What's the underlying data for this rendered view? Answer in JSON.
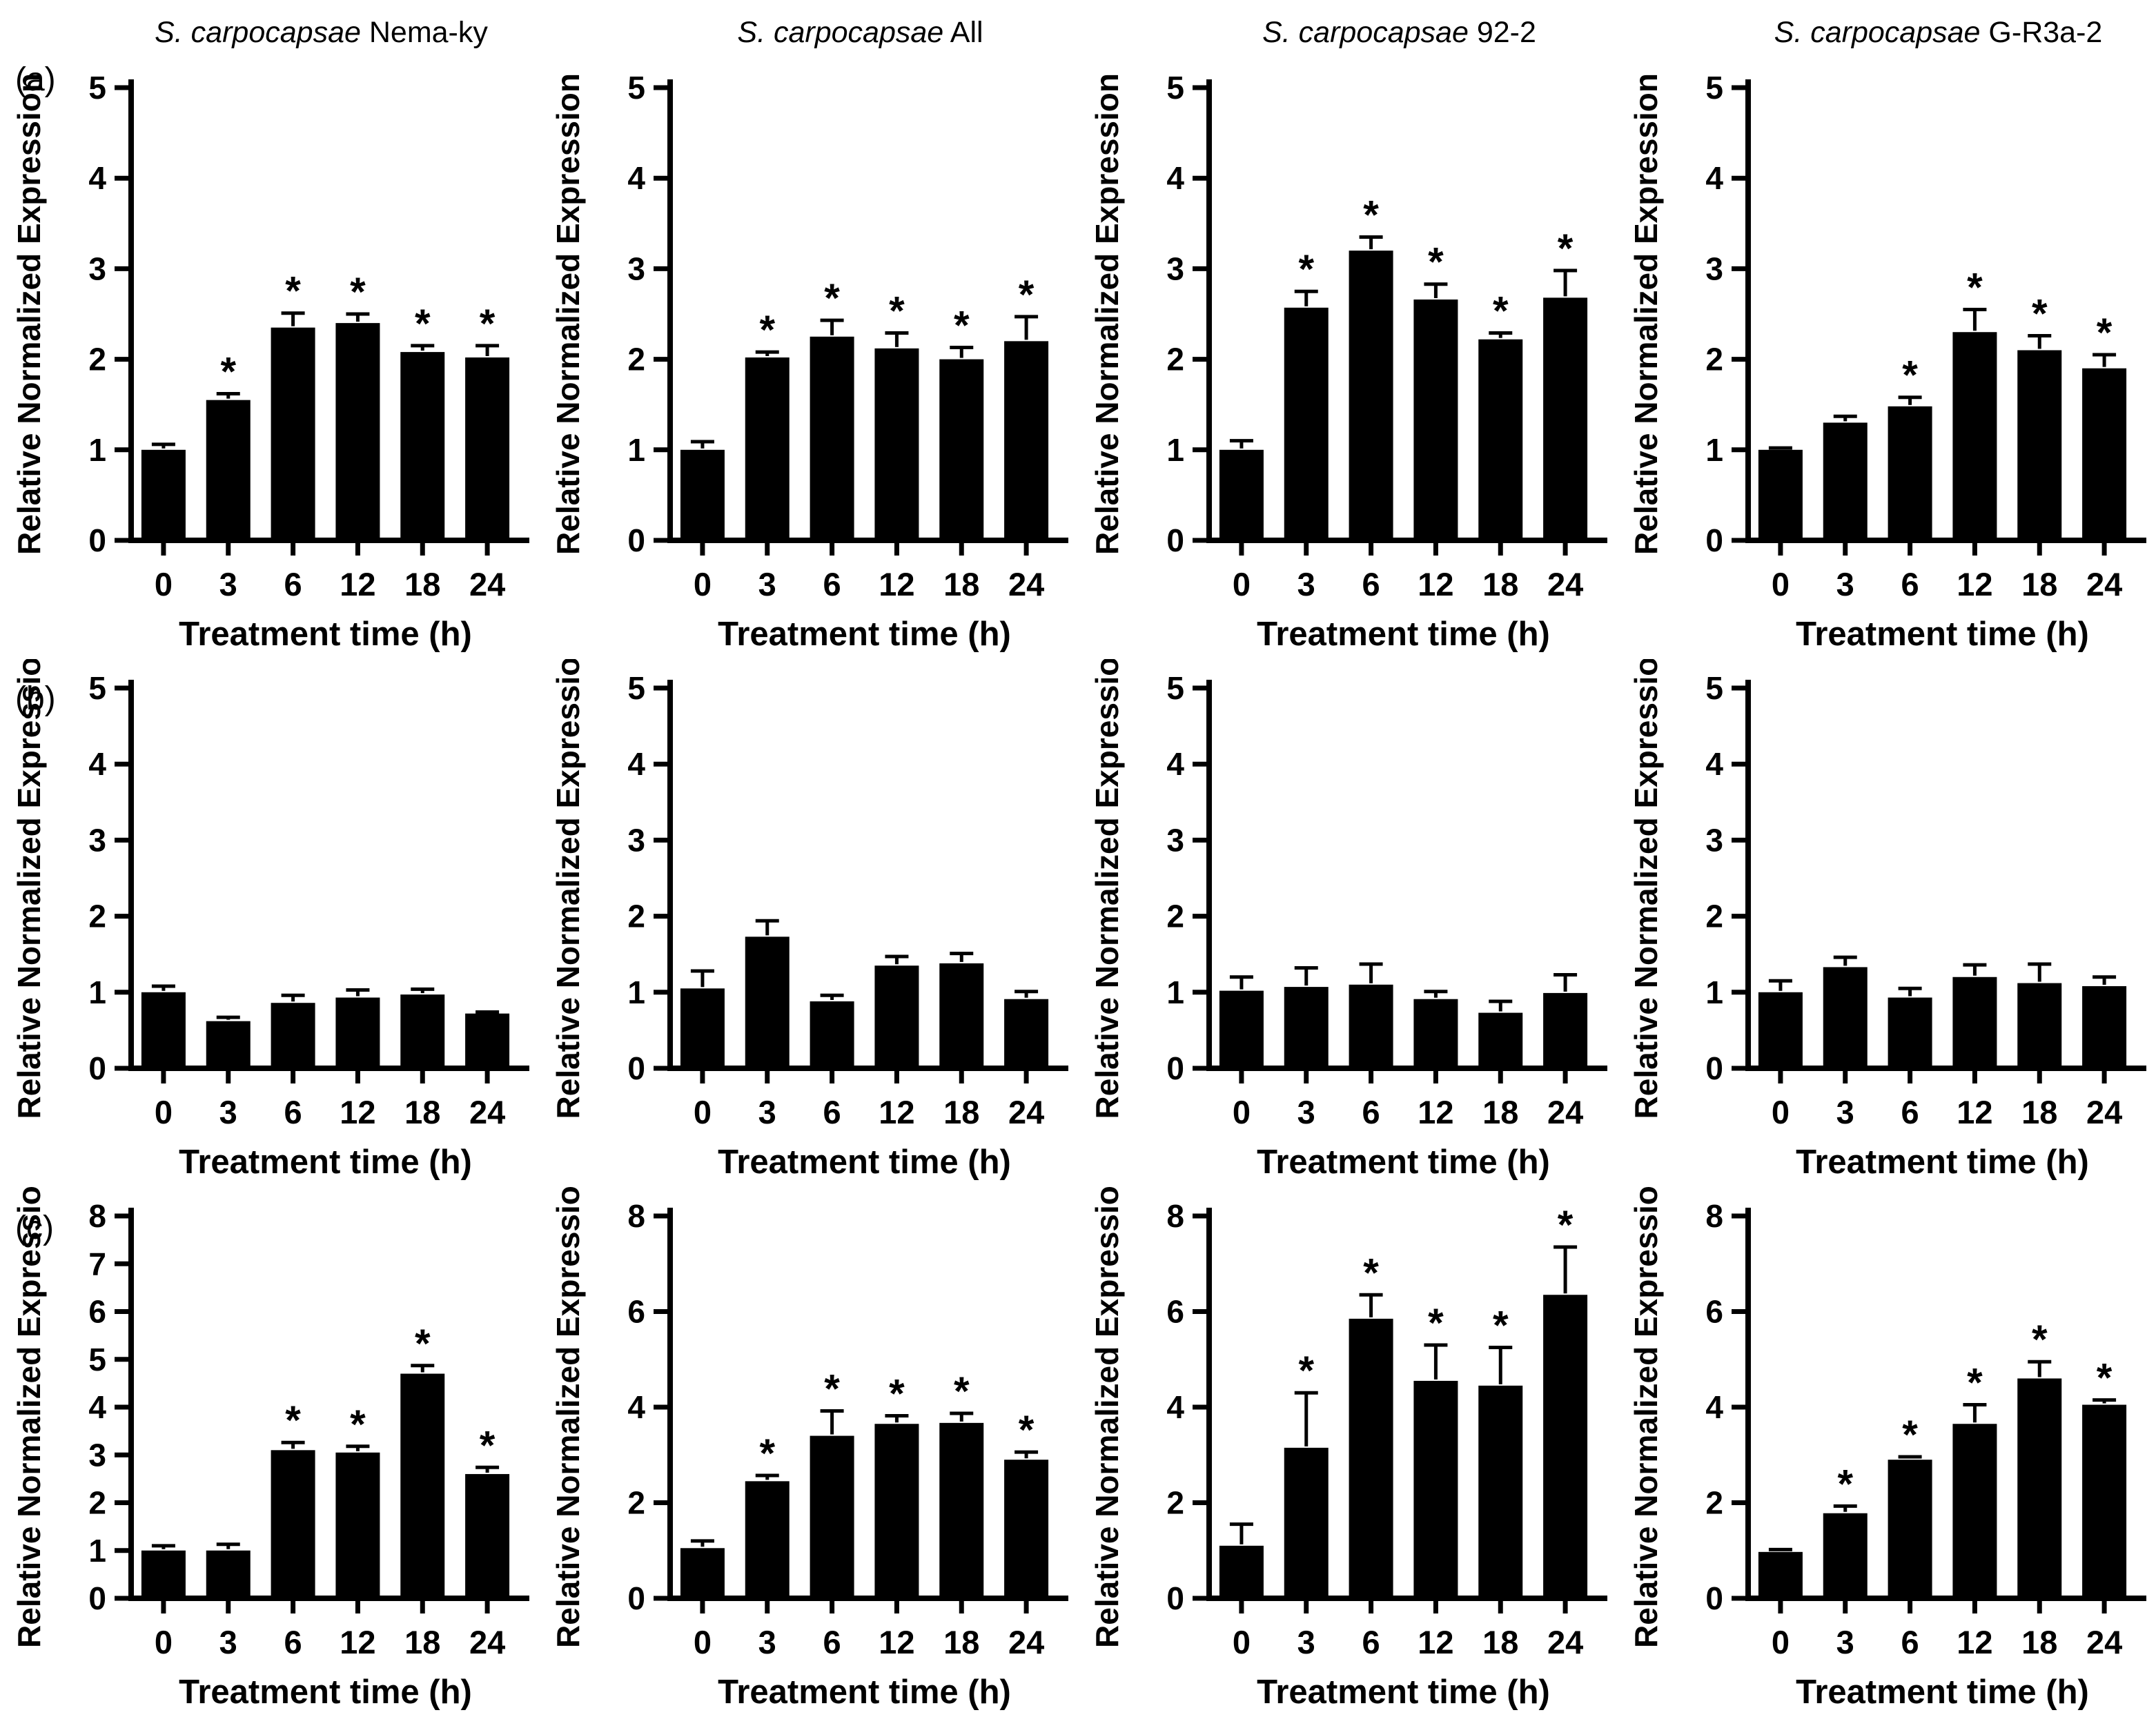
{
  "figure": {
    "row_labels": [
      "(a)",
      "(b)",
      "(c)"
    ],
    "columns": [
      {
        "species": "S. carpocapsae",
        "strain": "Nema-ky"
      },
      {
        "species": "S. carpocapsae",
        "strain": "All"
      },
      {
        "species": "S. carpocapsae",
        "strain": "92-2"
      },
      {
        "species": "S. carpocapsae",
        "strain": "G-R3a-2"
      }
    ],
    "ylabel": "Relative Normalized Expression",
    "xlabel": "Treatment time (h)",
    "significance_marker": "*",
    "bar_color": "#000000",
    "axis_color": "#000000"
  },
  "chart_data": [
    {
      "type": "bar",
      "panel": "a",
      "strain": "S. carpocapsae Nema-ky",
      "categories": [
        "0",
        "3",
        "6",
        "12",
        "18",
        "24"
      ],
      "values": [
        1.0,
        1.55,
        2.35,
        2.4,
        2.08,
        2.02
      ],
      "errors": [
        0.06,
        0.07,
        0.16,
        0.1,
        0.07,
        0.13
      ],
      "significant": [
        false,
        true,
        true,
        true,
        true,
        true
      ],
      "ylim": [
        0,
        5
      ],
      "yticks": [
        0,
        1,
        2,
        3,
        4,
        5
      ],
      "xlabel": "Treatment time (h)",
      "ylabel": "Relative Normalized Expression",
      "grid": false,
      "legend": false
    },
    {
      "type": "bar",
      "panel": "a",
      "strain": "S. carpocapsae All",
      "categories": [
        "0",
        "3",
        "6",
        "12",
        "18",
        "24"
      ],
      "values": [
        1.0,
        2.02,
        2.25,
        2.12,
        2.0,
        2.2
      ],
      "errors": [
        0.09,
        0.06,
        0.18,
        0.17,
        0.13,
        0.27
      ],
      "significant": [
        false,
        true,
        true,
        true,
        true,
        true
      ],
      "ylim": [
        0,
        5
      ],
      "yticks": [
        0,
        1,
        2,
        3,
        4,
        5
      ],
      "xlabel": "Treatment time (h)",
      "ylabel": "Relative Normalized Expression",
      "grid": false,
      "legend": false
    },
    {
      "type": "bar",
      "panel": "a",
      "strain": "S. carpocapsae 92-2",
      "categories": [
        "0",
        "3",
        "6",
        "12",
        "18",
        "24"
      ],
      "values": [
        1.0,
        2.57,
        3.2,
        2.66,
        2.22,
        2.68
      ],
      "errors": [
        0.1,
        0.18,
        0.15,
        0.17,
        0.07,
        0.3
      ],
      "significant": [
        false,
        true,
        true,
        true,
        true,
        true
      ],
      "ylim": [
        0,
        5
      ],
      "yticks": [
        0,
        1,
        2,
        3,
        4,
        5
      ],
      "xlabel": "Treatment time (h)",
      "ylabel": "Relative Normalized Expression",
      "grid": false,
      "legend": false
    },
    {
      "type": "bar",
      "panel": "a",
      "strain": "S. carpocapsae G-R3a-2",
      "categories": [
        "0",
        "3",
        "6",
        "12",
        "18",
        "24"
      ],
      "values": [
        1.0,
        1.3,
        1.48,
        2.3,
        2.1,
        1.9
      ],
      "errors": [
        0.02,
        0.07,
        0.1,
        0.25,
        0.16,
        0.15
      ],
      "significant": [
        false,
        false,
        true,
        true,
        true,
        true
      ],
      "ylim": [
        0,
        5
      ],
      "yticks": [
        0,
        1,
        2,
        3,
        4,
        5
      ],
      "xlabel": "Treatment time (h)",
      "ylabel": "Relative Normalized Expression",
      "grid": false,
      "legend": false
    },
    {
      "type": "bar",
      "panel": "b",
      "strain": "S. carpocapsae Nema-ky",
      "categories": [
        "0",
        "3",
        "6",
        "12",
        "18",
        "24"
      ],
      "values": [
        1.0,
        0.62,
        0.86,
        0.93,
        0.97,
        0.72
      ],
      "errors": [
        0.08,
        0.05,
        0.1,
        0.1,
        0.07,
        0.02
      ],
      "significant": [
        false,
        false,
        false,
        false,
        false,
        false
      ],
      "ylim": [
        0,
        5
      ],
      "yticks": [
        0,
        1,
        2,
        3,
        4,
        5
      ],
      "xlabel": "Treatment time (h)",
      "ylabel": "Relative Normalized Expression",
      "grid": false,
      "legend": false
    },
    {
      "type": "bar",
      "panel": "b",
      "strain": "S. carpocapsae All",
      "categories": [
        "0",
        "3",
        "6",
        "12",
        "18",
        "24"
      ],
      "values": [
        1.05,
        1.73,
        0.88,
        1.35,
        1.38,
        0.91
      ],
      "errors": [
        0.23,
        0.21,
        0.08,
        0.12,
        0.13,
        0.1
      ],
      "significant": [
        false,
        false,
        false,
        false,
        false,
        false
      ],
      "ylim": [
        0,
        5
      ],
      "yticks": [
        0,
        1,
        2,
        3,
        4,
        5
      ],
      "xlabel": "Treatment time (h)",
      "ylabel": "Relative Normalized Expression",
      "grid": false,
      "legend": false
    },
    {
      "type": "bar",
      "panel": "b",
      "strain": "S. carpocapsae 92-2",
      "categories": [
        "0",
        "3",
        "6",
        "12",
        "18",
        "24"
      ],
      "values": [
        1.02,
        1.07,
        1.1,
        0.91,
        0.73,
        0.99
      ],
      "errors": [
        0.18,
        0.25,
        0.27,
        0.1,
        0.15,
        0.24
      ],
      "significant": [
        false,
        false,
        false,
        false,
        false,
        false
      ],
      "ylim": [
        0,
        5
      ],
      "yticks": [
        0,
        1,
        2,
        3,
        4,
        5
      ],
      "xlabel": "Treatment time (h)",
      "ylabel": "Relative Normalized Expression",
      "grid": false,
      "legend": false
    },
    {
      "type": "bar",
      "panel": "b",
      "strain": "S. carpocapsae G-R3a-2",
      "categories": [
        "0",
        "3",
        "6",
        "12",
        "18",
        "24"
      ],
      "values": [
        1.0,
        1.33,
        0.93,
        1.2,
        1.12,
        1.08
      ],
      "errors": [
        0.15,
        0.13,
        0.12,
        0.16,
        0.25,
        0.12
      ],
      "significant": [
        false,
        false,
        false,
        false,
        false,
        false
      ],
      "ylim": [
        0,
        5
      ],
      "yticks": [
        0,
        1,
        2,
        3,
        4,
        5
      ],
      "xlabel": "Treatment time (h)",
      "ylabel": "Relative Normalized Expression",
      "grid": false,
      "legend": false
    },
    {
      "type": "bar",
      "panel": "c",
      "strain": "S. carpocapsae Nema-ky",
      "categories": [
        "0",
        "3",
        "6",
        "12",
        "18",
        "24"
      ],
      "values": [
        1.0,
        1.0,
        3.1,
        3.05,
        4.7,
        2.6
      ],
      "errors": [
        0.1,
        0.13,
        0.16,
        0.13,
        0.17,
        0.14
      ],
      "significant": [
        false,
        false,
        true,
        true,
        true,
        true
      ],
      "ylim": [
        0,
        8
      ],
      "yticks": [
        0,
        1,
        2,
        3,
        4,
        5,
        6,
        7,
        8
      ],
      "xlabel": "Treatment time (h)",
      "ylabel": "Relative Normalized Expression",
      "grid": false,
      "legend": false
    },
    {
      "type": "bar",
      "panel": "c",
      "strain": "S. carpocapsae All",
      "categories": [
        "0",
        "3",
        "6",
        "12",
        "18",
        "24"
      ],
      "values": [
        1.05,
        2.45,
        3.4,
        3.65,
        3.67,
        2.9
      ],
      "errors": [
        0.15,
        0.12,
        0.52,
        0.17,
        0.2,
        0.16
      ],
      "significant": [
        false,
        true,
        true,
        true,
        true,
        true
      ],
      "ylim": [
        0,
        8
      ],
      "yticks": [
        0,
        2,
        4,
        6,
        8
      ],
      "xlabel": "Treatment time (h)",
      "ylabel": "Relative Normalized Expression",
      "grid": false,
      "legend": false
    },
    {
      "type": "bar",
      "panel": "c",
      "strain": "S. carpocapsae 92-2",
      "categories": [
        "0",
        "3",
        "6",
        "12",
        "18",
        "24"
      ],
      "values": [
        1.1,
        3.15,
        5.85,
        4.55,
        4.45,
        6.35
      ],
      "errors": [
        0.45,
        1.15,
        0.5,
        0.75,
        0.8,
        1.0
      ],
      "significant": [
        false,
        true,
        true,
        true,
        true,
        true
      ],
      "ylim": [
        0,
        8
      ],
      "yticks": [
        0,
        2,
        4,
        6,
        8
      ],
      "xlabel": "Treatment time (h)",
      "ylabel": "Relative Normalized Expression",
      "grid": false,
      "legend": false
    },
    {
      "type": "bar",
      "panel": "c",
      "strain": "S. carpocapsae G-R3a-2",
      "categories": [
        "0",
        "3",
        "6",
        "12",
        "18",
        "24"
      ],
      "values": [
        0.97,
        1.78,
        2.9,
        3.65,
        4.6,
        4.05
      ],
      "errors": [
        0.05,
        0.15,
        0.06,
        0.4,
        0.35,
        0.1
      ],
      "significant": [
        false,
        true,
        true,
        true,
        true,
        true
      ],
      "ylim": [
        0,
        8
      ],
      "yticks": [
        0,
        2,
        4,
        6,
        8
      ],
      "xlabel": "Treatment time (h)",
      "ylabel": "Relative Normalized Expression",
      "grid": false,
      "legend": false
    }
  ]
}
